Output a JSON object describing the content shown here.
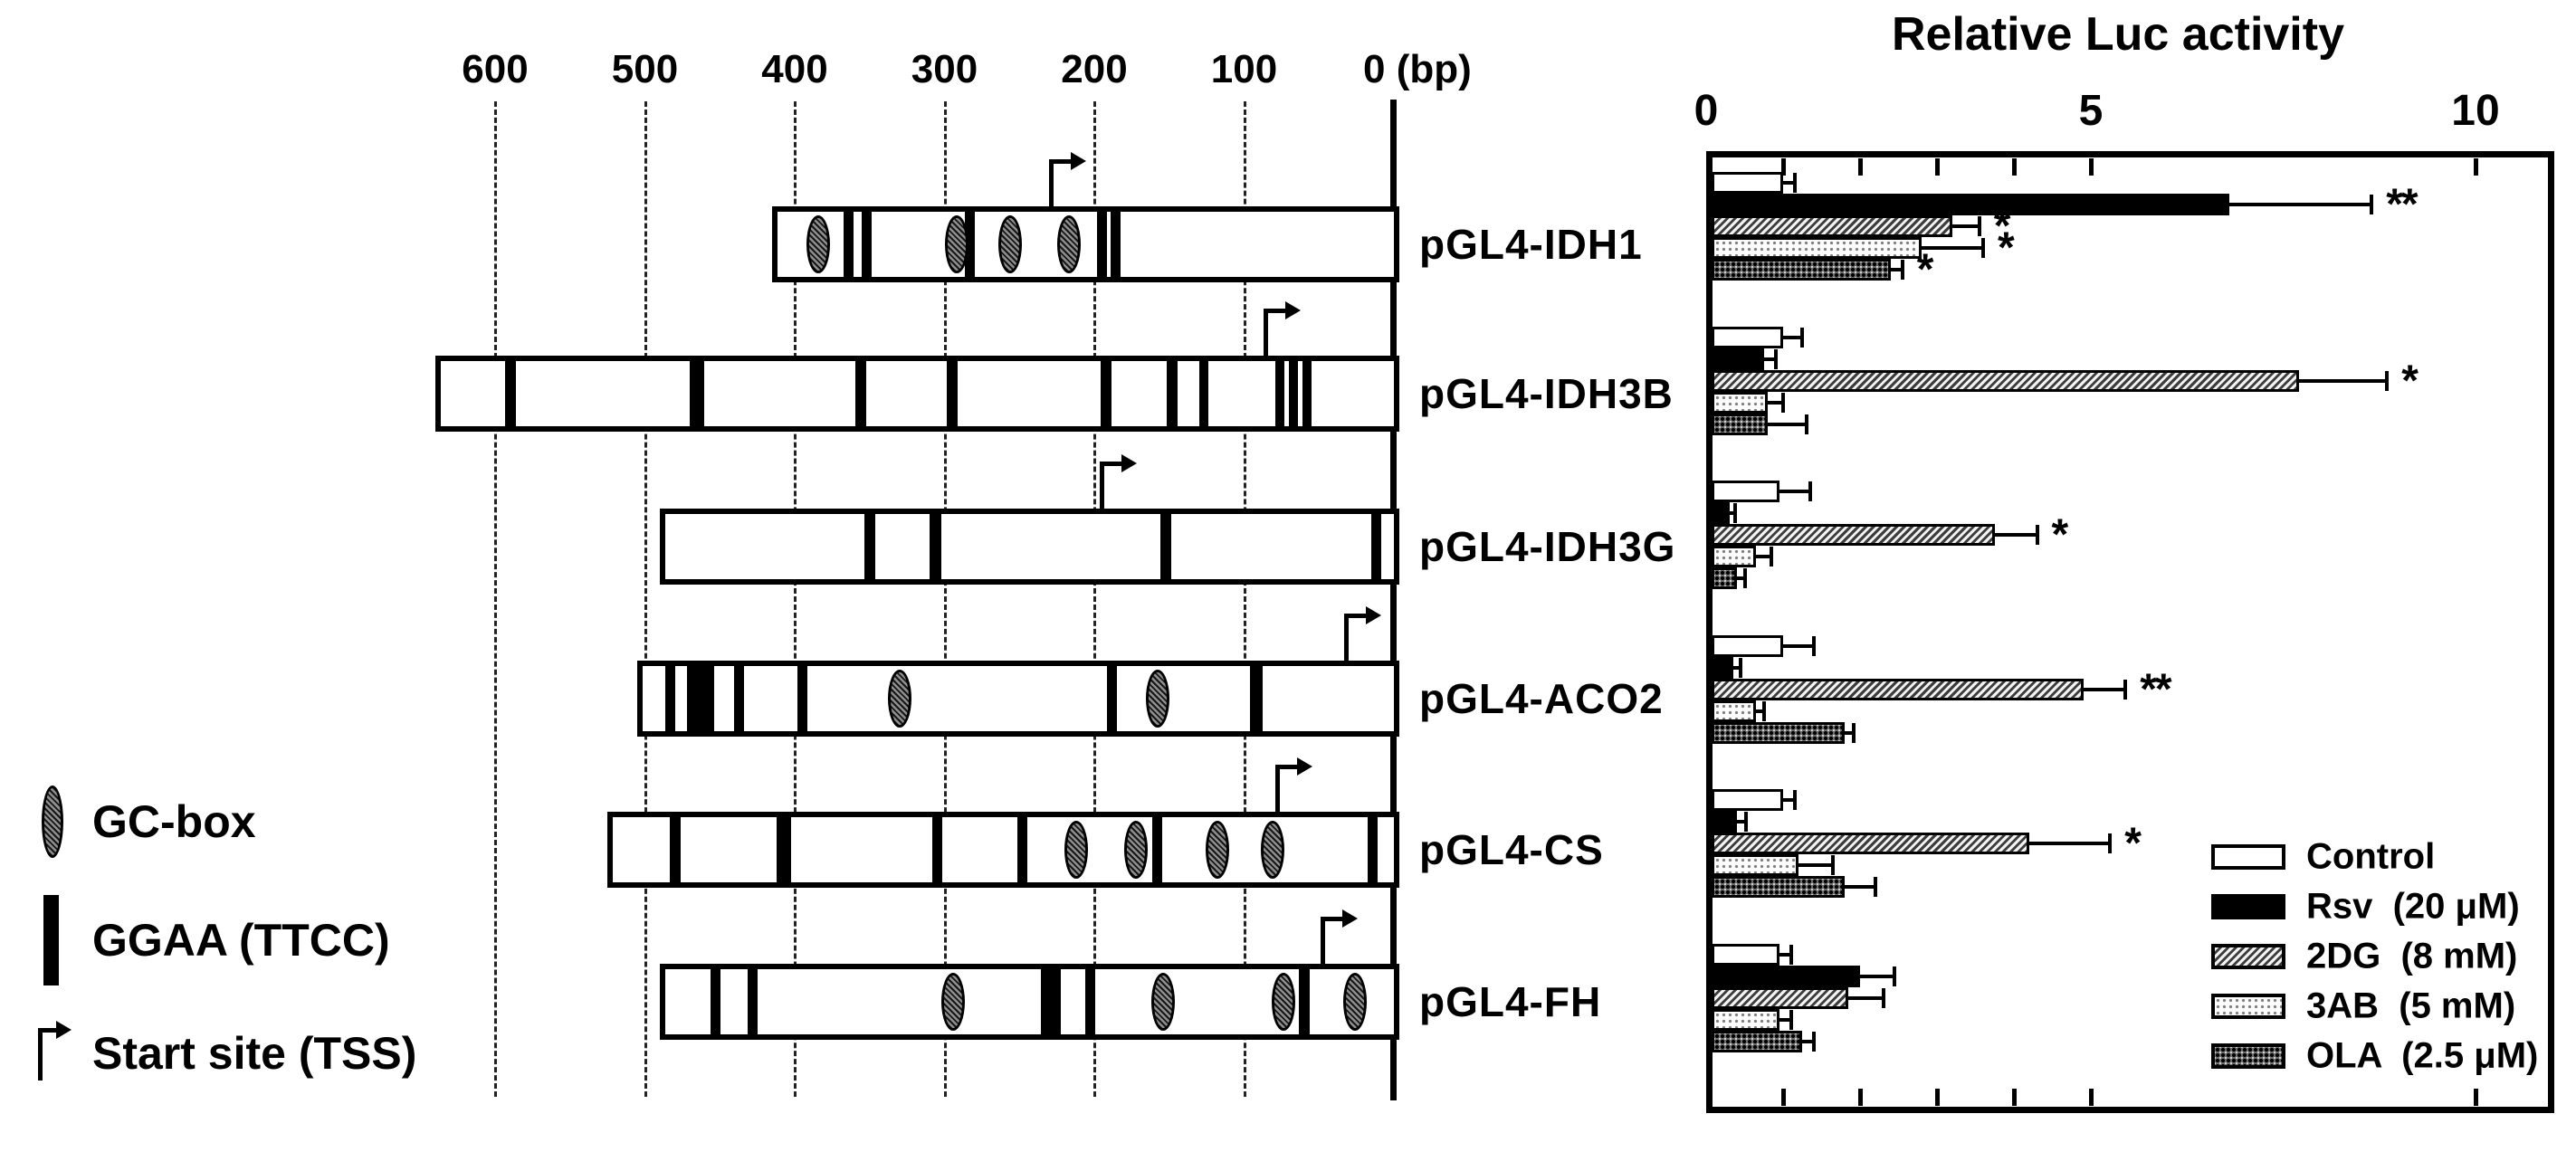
{
  "diagram": {
    "scale_labels": [
      "600",
      "500",
      "400",
      "300",
      "200",
      "100"
    ],
    "scale_values": [
      600,
      500,
      400,
      300,
      200,
      100
    ],
    "zero_label": "0 (bp)",
    "legend": [
      {
        "id": "gc",
        "label": "GC-box"
      },
      {
        "id": "ggaa",
        "label": "GGAA (TTCC)"
      },
      {
        "id": "tss",
        "label": "Start site (TSS)"
      }
    ],
    "constructs": [
      {
        "name": "pGL4-IDH1",
        "start_bp": 415,
        "tss_bp": 229,
        "gc_boxes": [
          384,
          292,
          256,
          217
        ],
        "ggaa_sites": [
          {
            "bp": 364,
            "w": 11
          },
          {
            "bp": 352,
            "w": 11
          },
          {
            "bp": 283,
            "w": 11
          },
          {
            "bp": 195,
            "w": 11
          },
          {
            "bp": 186,
            "w": 11
          }
        ]
      },
      {
        "name": "pGL4-IDH3B",
        "start_bp": 640,
        "tss_bp": 86,
        "gc_boxes": [],
        "ggaa_sites": [
          {
            "bp": 590,
            "w": 12
          },
          {
            "bp": 465,
            "w": 16
          },
          {
            "bp": 356,
            "w": 12
          },
          {
            "bp": 295,
            "w": 12
          },
          {
            "bp": 192,
            "w": 12
          },
          {
            "bp": 148,
            "w": 12
          },
          {
            "bp": 127,
            "w": 10
          },
          {
            "bp": 76,
            "w": 10
          },
          {
            "bp": 67,
            "w": 10
          },
          {
            "bp": 58,
            "w": 10
          }
        ]
      },
      {
        "name": "pGL4-IDH3G",
        "start_bp": 490,
        "tss_bp": 195,
        "gc_boxes": [],
        "ggaa_sites": [
          {
            "bp": 350,
            "w": 12
          },
          {
            "bp": 306,
            "w": 13
          },
          {
            "bp": 152,
            "w": 12
          },
          {
            "bp": 12,
            "w": 11
          }
        ]
      },
      {
        "name": "pGL4-ACO2",
        "start_bp": 505,
        "tss_bp": 32,
        "gc_boxes": [
          330,
          158
        ],
        "ggaa_sites": [
          {
            "bp": 483,
            "w": 11
          },
          {
            "bp": 463,
            "w": 30
          },
          {
            "bp": 437,
            "w": 11
          },
          {
            "bp": 395,
            "w": 11
          },
          {
            "bp": 188,
            "w": 11
          },
          {
            "bp": 92,
            "w": 14
          }
        ]
      },
      {
        "name": "pGL4-CS",
        "start_bp": 525,
        "tss_bp": 78,
        "gc_boxes": [
          212,
          172,
          118,
          81
        ],
        "ggaa_sites": [
          {
            "bp": 480,
            "w": 12
          },
          {
            "bp": 407,
            "w": 16
          },
          {
            "bp": 305,
            "w": 11
          },
          {
            "bp": 248,
            "w": 11
          },
          {
            "bp": 158,
            "w": 11
          },
          {
            "bp": 14,
            "w": 11
          }
        ]
      },
      {
        "name": "pGL4-FH",
        "start_bp": 490,
        "tss_bp": 48,
        "gc_boxes": [
          294,
          154,
          74,
          26
        ],
        "ggaa_sites": [
          {
            "bp": 453,
            "w": 11
          },
          {
            "bp": 428,
            "w": 11
          },
          {
            "bp": 229,
            "w": 22
          },
          {
            "bp": 203,
            "w": 11
          },
          {
            "bp": 60,
            "w": 12
          }
        ]
      }
    ]
  },
  "chart_data": {
    "type": "bar",
    "orientation": "horizontal",
    "title": "Relative Luc activity",
    "xlabel": "Relative Luc activity",
    "xlim": [
      0,
      11
    ],
    "x_axis_labels": [
      "0",
      "5",
      "10"
    ],
    "x_axis_values": [
      0,
      5,
      10
    ],
    "x_minor_ticks": [
      1,
      2,
      3,
      4,
      5,
      10
    ],
    "grid": false,
    "legend_position": "bottom-right",
    "series": [
      "Control",
      "Rsv (20 μM)",
      "2DG (8 mM)",
      "3AB (5 mM)",
      "OLA (2.5 μM)"
    ],
    "categories": [
      "pGL4-IDH1",
      "pGL4-IDH3B",
      "pGL4-IDH3G",
      "pGL4-ACO2",
      "pGL4-CS",
      "pGL4-FH"
    ],
    "groups": [
      {
        "name": "pGL4-IDH1",
        "bars": [
          {
            "series": "control",
            "value": 1.0,
            "err": 0.15,
            "sig": ""
          },
          {
            "series": "rsv",
            "value": 6.8,
            "err": 1.85,
            "sig": "**"
          },
          {
            "series": "2dg",
            "value": 3.2,
            "err": 0.35,
            "sig": "*"
          },
          {
            "series": "3ab",
            "value": 2.8,
            "err": 0.8,
            "sig": "*"
          },
          {
            "series": "ola",
            "value": 2.4,
            "err": 0.15,
            "sig": "*"
          }
        ]
      },
      {
        "name": "pGL4-IDH3B",
        "bars": [
          {
            "series": "control",
            "value": 1.0,
            "err": 0.25,
            "sig": ""
          },
          {
            "series": "rsv",
            "value": 0.75,
            "err": 0.15,
            "sig": ""
          },
          {
            "series": "2dg",
            "value": 7.7,
            "err": 1.15,
            "sig": "*"
          },
          {
            "series": "3ab",
            "value": 0.8,
            "err": 0.2,
            "sig": ""
          },
          {
            "series": "ola",
            "value": 0.8,
            "err": 0.5,
            "sig": ""
          }
        ]
      },
      {
        "name": "pGL4-IDH3G",
        "bars": [
          {
            "series": "control",
            "value": 0.95,
            "err": 0.4,
            "sig": ""
          },
          {
            "series": "rsv",
            "value": 0.3,
            "err": 0.08,
            "sig": ""
          },
          {
            "series": "2dg",
            "value": 3.75,
            "err": 0.55,
            "sig": "*"
          },
          {
            "series": "3ab",
            "value": 0.65,
            "err": 0.2,
            "sig": ""
          },
          {
            "series": "ola",
            "value": 0.4,
            "err": 0.1,
            "sig": ""
          }
        ]
      },
      {
        "name": "pGL4-ACO2",
        "bars": [
          {
            "series": "control",
            "value": 1.0,
            "err": 0.4,
            "sig": ""
          },
          {
            "series": "rsv",
            "value": 0.35,
            "err": 0.1,
            "sig": ""
          },
          {
            "series": "2dg",
            "value": 4.9,
            "err": 0.55,
            "sig": "**"
          },
          {
            "series": "3ab",
            "value": 0.65,
            "err": 0.1,
            "sig": ""
          },
          {
            "series": "ola",
            "value": 1.8,
            "err": 0.12,
            "sig": ""
          }
        ]
      },
      {
        "name": "pGL4-CS",
        "bars": [
          {
            "series": "control",
            "value": 1.0,
            "err": 0.15,
            "sig": ""
          },
          {
            "series": "rsv",
            "value": 0.4,
            "err": 0.12,
            "sig": ""
          },
          {
            "series": "2dg",
            "value": 4.2,
            "err": 1.05,
            "sig": "*"
          },
          {
            "series": "3ab",
            "value": 1.2,
            "err": 0.45,
            "sig": ""
          },
          {
            "series": "ola",
            "value": 1.8,
            "err": 0.4,
            "sig": ""
          }
        ]
      },
      {
        "name": "pGL4-FH",
        "bars": [
          {
            "series": "control",
            "value": 0.95,
            "err": 0.15,
            "sig": ""
          },
          {
            "series": "rsv",
            "value": 2.0,
            "err": 0.45,
            "sig": ""
          },
          {
            "series": "2dg",
            "value": 1.85,
            "err": 0.45,
            "sig": ""
          },
          {
            "series": "3ab",
            "value": 0.95,
            "err": 0.15,
            "sig": ""
          },
          {
            "series": "ola",
            "value": 1.25,
            "err": 0.15,
            "sig": ""
          }
        ]
      }
    ],
    "legend": [
      {
        "id": "control",
        "label": "Control"
      },
      {
        "id": "rsv",
        "label": "Rsv  (20 μM)"
      },
      {
        "id": "2dg",
        "label": "2DG  (8 mM)"
      },
      {
        "id": "3ab",
        "label": "3AB  (5 mM)"
      },
      {
        "id": "ola",
        "label": "OLA  (2.5 μM)"
      }
    ],
    "colors": {
      "ink": "#000000",
      "paper": "#ffffff"
    }
  }
}
